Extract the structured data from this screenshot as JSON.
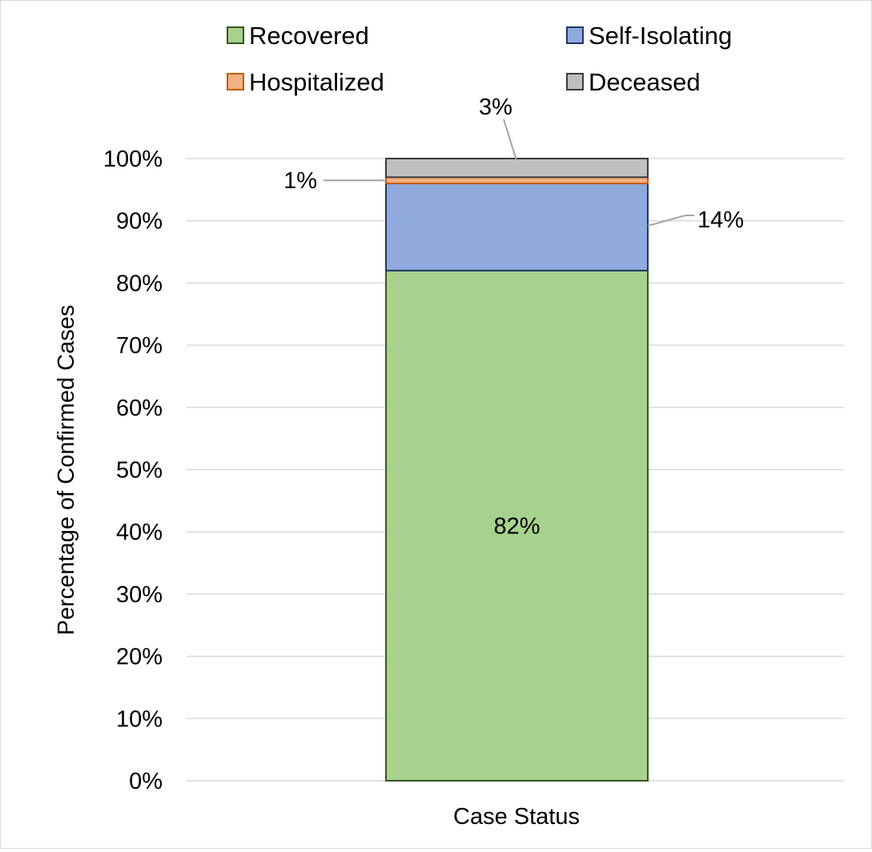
{
  "chart_data": {
    "type": "bar",
    "stacked": true,
    "normalized": true,
    "categories": [
      "Case Status"
    ],
    "series": [
      {
        "name": "Recovered",
        "values": [
          82
        ],
        "color": "#a9d18e",
        "label": "82%"
      },
      {
        "name": "Self-Isolating",
        "values": [
          14
        ],
        "color": "#8faadc",
        "label": "14%"
      },
      {
        "name": "Hospitalized",
        "values": [
          1
        ],
        "color": "#f4b183",
        "label": "1%"
      },
      {
        "name": "Deceased",
        "values": [
          3
        ],
        "color": "#bfbfbf",
        "label": "3%"
      }
    ],
    "xlabel": "Case Status",
    "ylabel": "Percentage of Confirmed Cases",
    "ylim": [
      0,
      100
    ],
    "yticks": [
      "0%",
      "10%",
      "20%",
      "30%",
      "40%",
      "50%",
      "60%",
      "70%",
      "80%",
      "90%",
      "100%"
    ],
    "grid": true,
    "legend_position": "top",
    "edge_colors": {
      "Recovered": "#375623",
      "Self-Isolating": "#203864",
      "Hospitalized": "#c55a11",
      "Deceased": "#3a3a3a"
    }
  }
}
